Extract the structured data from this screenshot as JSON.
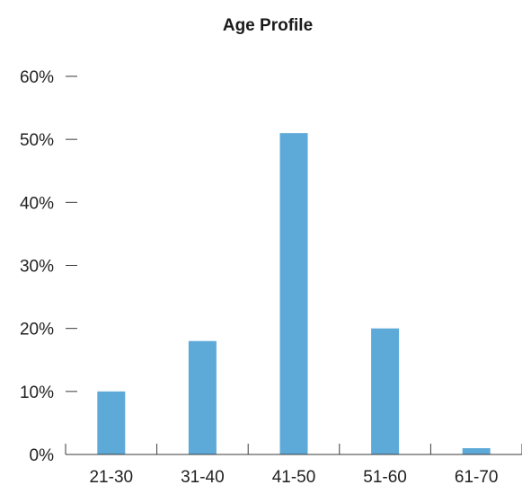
{
  "chart_data": {
    "type": "bar",
    "title": "Age Profile",
    "categories": [
      "21-30",
      "31-40",
      "41-50",
      "51-60",
      "61-70"
    ],
    "values": [
      10,
      18,
      51,
      20,
      1
    ],
    "ylim": [
      0,
      60
    ],
    "yticks": [
      "0%",
      "10%",
      "20%",
      "30%",
      "40%",
      "50%",
      "60%"
    ],
    "grid": false,
    "legend": "none",
    "bar_color": "#5DAAD9",
    "axis_color": "#3a3a3a"
  }
}
